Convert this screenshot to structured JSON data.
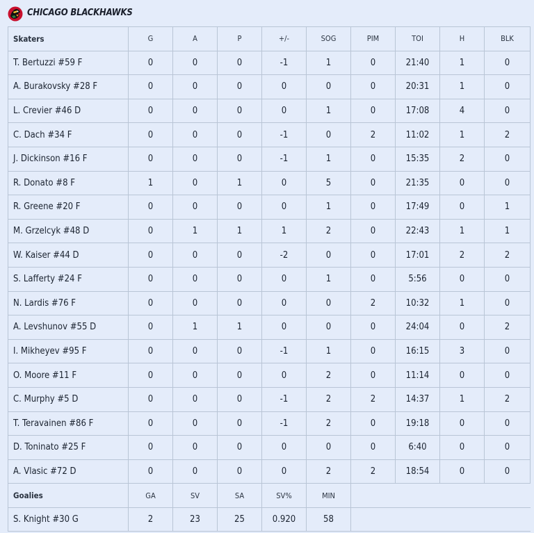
{
  "team": {
    "name": "CHICAGO BLACKHAWKS",
    "logo_icon": "blackhawks-logo-icon"
  },
  "skaters": {
    "headers": [
      "Skaters",
      "G",
      "A",
      "P",
      "+/-",
      "SOG",
      "PIM",
      "TOI",
      "H",
      "BLK"
    ],
    "rows": [
      [
        "T. Bertuzzi #59 F",
        "0",
        "0",
        "0",
        "-1",
        "1",
        "0",
        "21:40",
        "1",
        "0"
      ],
      [
        "A. Burakovsky #28 F",
        "0",
        "0",
        "0",
        "0",
        "0",
        "0",
        "20:31",
        "1",
        "0"
      ],
      [
        "L. Crevier #46 D",
        "0",
        "0",
        "0",
        "0",
        "1",
        "0",
        "17:08",
        "4",
        "0"
      ],
      [
        "C. Dach #34 F",
        "0",
        "0",
        "0",
        "-1",
        "0",
        "2",
        "11:02",
        "1",
        "2"
      ],
      [
        "J. Dickinson #16 F",
        "0",
        "0",
        "0",
        "-1",
        "1",
        "0",
        "15:35",
        "2",
        "0"
      ],
      [
        "R. Donato #8 F",
        "1",
        "0",
        "1",
        "0",
        "5",
        "0",
        "21:35",
        "0",
        "0"
      ],
      [
        "R. Greene #20 F",
        "0",
        "0",
        "0",
        "0",
        "1",
        "0",
        "17:49",
        "0",
        "1"
      ],
      [
        "M. Grzelcyk #48 D",
        "0",
        "1",
        "1",
        "1",
        "2",
        "0",
        "22:43",
        "1",
        "1"
      ],
      [
        "W. Kaiser #44 D",
        "0",
        "0",
        "0",
        "-2",
        "0",
        "0",
        "17:01",
        "2",
        "2"
      ],
      [
        "S. Lafferty #24 F",
        "0",
        "0",
        "0",
        "0",
        "1",
        "0",
        "5:56",
        "0",
        "0"
      ],
      [
        "N. Lardis #76 F",
        "0",
        "0",
        "0",
        "0",
        "0",
        "2",
        "10:32",
        "1",
        "0"
      ],
      [
        "A. Levshunov #55 D",
        "0",
        "1",
        "1",
        "0",
        "0",
        "0",
        "24:04",
        "0",
        "2"
      ],
      [
        "I. Mikheyev #95 F",
        "0",
        "0",
        "0",
        "-1",
        "1",
        "0",
        "16:15",
        "3",
        "0"
      ],
      [
        "O. Moore #11 F",
        "0",
        "0",
        "0",
        "0",
        "2",
        "0",
        "11:14",
        "0",
        "0"
      ],
      [
        "C. Murphy #5 D",
        "0",
        "0",
        "0",
        "-1",
        "2",
        "2",
        "14:37",
        "1",
        "2"
      ],
      [
        "T. Teravainen #86 F",
        "0",
        "0",
        "0",
        "-1",
        "2",
        "0",
        "19:18",
        "0",
        "0"
      ],
      [
        "D. Toninato #25 F",
        "0",
        "0",
        "0",
        "0",
        "0",
        "0",
        "6:40",
        "0",
        "0"
      ],
      [
        "A. Vlasic #72 D",
        "0",
        "0",
        "0",
        "0",
        "2",
        "2",
        "18:54",
        "0",
        "0"
      ]
    ]
  },
  "goalies": {
    "headers": [
      "Goalies",
      "GA",
      "SV",
      "SA",
      "SV%",
      "MIN"
    ],
    "rows": [
      [
        "S. Knight #30 G",
        "2",
        "23",
        "25",
        "0.920",
        "58"
      ]
    ]
  }
}
